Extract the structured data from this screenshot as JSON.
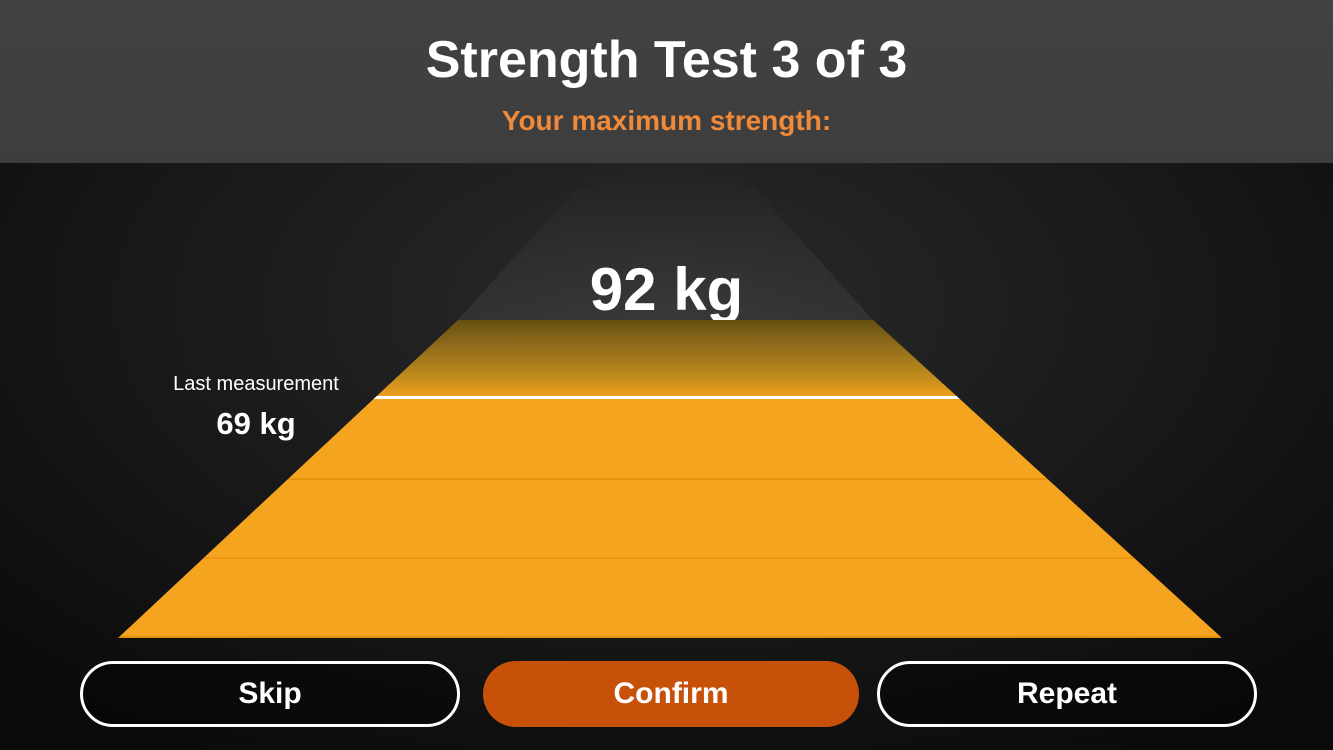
{
  "header": {
    "title": "Strength Test 3 of 3",
    "subtitle": "Your maximum strength:"
  },
  "gauge": {
    "current_value": "92 kg",
    "last_label": "Last measurement",
    "last_value": "69 kg"
  },
  "buttons": {
    "skip": "Skip",
    "confirm": "Confirm",
    "repeat": "Repeat"
  },
  "colors": {
    "header_background": "#3d3d3d",
    "subtitle_orange": "#ef8a3b",
    "gauge_orange": "#f5a41f",
    "gauge_top_shadow": "#66500f",
    "confirm_button_orange": "#c8510a",
    "marker_line": "#ffffff"
  }
}
